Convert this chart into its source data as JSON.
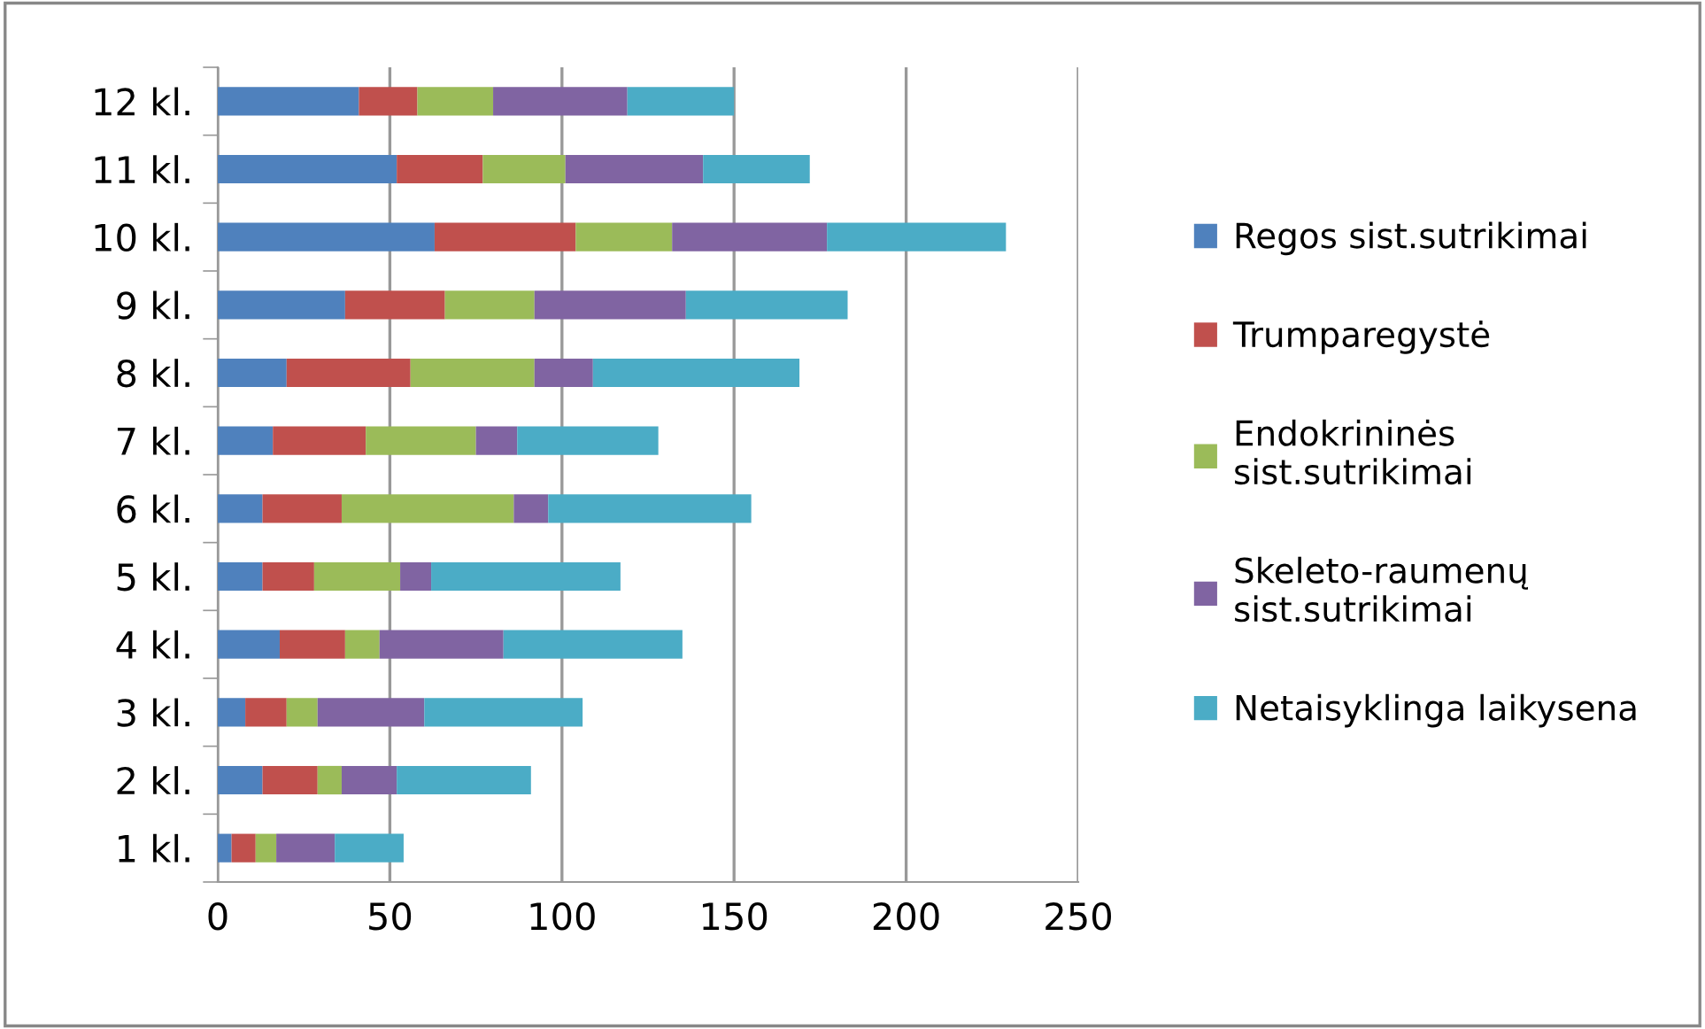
{
  "chart_data": {
    "type": "bar",
    "orientation": "horizontal",
    "stacked": true,
    "categories": [
      "12 kl.",
      "11 kl.",
      "10 kl.",
      "9 kl.",
      "8 kl.",
      "7 kl.",
      "6 kl.",
      "5 kl.",
      "4 kl.",
      "3 kl.",
      "2 kl.",
      "1 kl."
    ],
    "series": [
      {
        "name": "Regos sist.sutrikimai",
        "color": "#4f81bd",
        "values": [
          41,
          52,
          63,
          37,
          20,
          16,
          13,
          13,
          18,
          8,
          13,
          4
        ]
      },
      {
        "name": "Trumparegystė",
        "color": "#c0504d",
        "values": [
          17,
          25,
          41,
          29,
          36,
          27,
          23,
          15,
          19,
          12,
          16,
          7
        ]
      },
      {
        "name": "Endokrininės\nsist.sutrikimai",
        "color": "#9bbb59",
        "values": [
          22,
          24,
          28,
          26,
          36,
          32,
          50,
          25,
          10,
          9,
          7,
          6
        ]
      },
      {
        "name": "Skeleto-raumenų\nsist.sutrikimai",
        "color": "#8064a2",
        "values": [
          39,
          40,
          45,
          44,
          17,
          12,
          10,
          9,
          36,
          31,
          16,
          17
        ]
      },
      {
        "name": "Netaisyklinga laikysena",
        "color": "#4bacc6",
        "values": [
          31,
          31,
          52,
          47,
          60,
          41,
          59,
          55,
          52,
          46,
          39,
          20
        ]
      }
    ],
    "xlim": [
      0,
      250
    ],
    "xticks": [
      0,
      50,
      100,
      150,
      200,
      250
    ],
    "grid": "x",
    "legend": "right"
  }
}
